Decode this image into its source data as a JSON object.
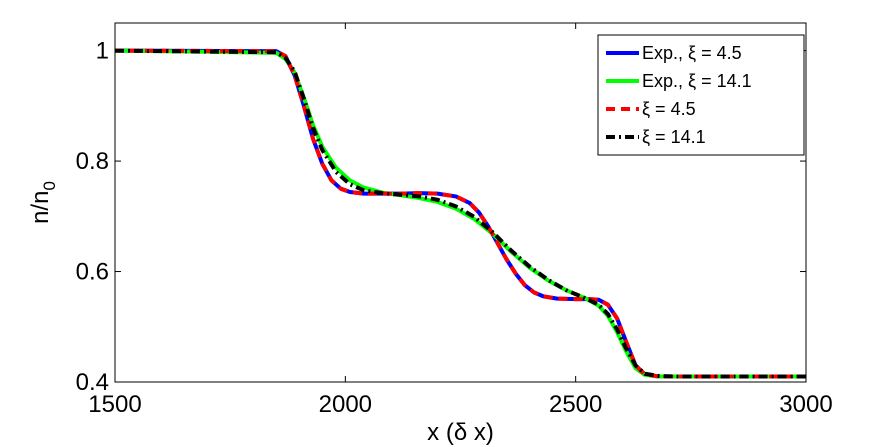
{
  "chart_data": {
    "type": "line",
    "xlabel": "x (δ x)",
    "ylabel": {
      "main": "n/n",
      "sub": "0"
    },
    "xlim": [
      1500,
      3000
    ],
    "ylim": [
      0.4,
      1.05
    ],
    "xticks": [
      1500,
      2000,
      2500,
      3000
    ],
    "yticks": [
      0.4,
      0.6,
      0.8,
      1
    ],
    "ytick_labels": [
      "0.4",
      "0.6",
      "0.8",
      "1"
    ],
    "grid": false,
    "legend_position": "top-right",
    "series": [
      {
        "name": "Exp., ξ = 4.5",
        "color": "#0000ff",
        "style": "solid",
        "x": [
          1500,
          1850,
          1870,
          1890,
          1910,
          1930,
          1950,
          1970,
          1990,
          2010,
          2040,
          2080,
          2120,
          2160,
          2200,
          2240,
          2270,
          2290,
          2310,
          2330,
          2350,
          2370,
          2390,
          2410,
          2430,
          2460,
          2500,
          2530,
          2550,
          2570,
          2590,
          2610,
          2630,
          2650,
          2680,
          2720,
          3000
        ],
        "values": [
          1.0,
          0.999,
          0.99,
          0.955,
          0.9,
          0.84,
          0.795,
          0.765,
          0.75,
          0.744,
          0.741,
          0.741,
          0.741,
          0.742,
          0.741,
          0.736,
          0.724,
          0.707,
          0.682,
          0.652,
          0.622,
          0.596,
          0.575,
          0.562,
          0.555,
          0.551,
          0.55,
          0.55,
          0.549,
          0.54,
          0.515,
          0.472,
          0.43,
          0.414,
          0.41,
          0.41,
          0.41
        ]
      },
      {
        "name": "Exp., ξ = 14.1",
        "color": "#00ff00",
        "style": "solid",
        "x": [
          1500,
          1850,
          1870,
          1890,
          1910,
          1930,
          1950,
          1980,
          2010,
          2040,
          2080,
          2120,
          2160,
          2200,
          2240,
          2280,
          2320,
          2360,
          2400,
          2440,
          2480,
          2520,
          2550,
          2570,
          2590,
          2610,
          2630,
          2650,
          2680,
          2720,
          3000
        ],
        "values": [
          1.0,
          0.996,
          0.985,
          0.96,
          0.915,
          0.865,
          0.826,
          0.788,
          0.765,
          0.752,
          0.743,
          0.738,
          0.733,
          0.726,
          0.714,
          0.695,
          0.668,
          0.636,
          0.607,
          0.584,
          0.566,
          0.552,
          0.538,
          0.52,
          0.49,
          0.455,
          0.425,
          0.413,
          0.41,
          0.41,
          0.41
        ]
      },
      {
        "name": "ξ = 4.5",
        "color": "#ff0000",
        "style": "dashed",
        "x": [
          1500,
          1850,
          1870,
          1890,
          1910,
          1930,
          1950,
          1970,
          1990,
          2010,
          2040,
          2080,
          2120,
          2160,
          2200,
          2240,
          2270,
          2290,
          2310,
          2330,
          2350,
          2370,
          2390,
          2410,
          2430,
          2460,
          2500,
          2530,
          2550,
          2570,
          2590,
          2610,
          2630,
          2650,
          2680,
          2720,
          3000
        ],
        "values": [
          1.0,
          0.999,
          0.99,
          0.955,
          0.9,
          0.84,
          0.795,
          0.765,
          0.75,
          0.744,
          0.741,
          0.741,
          0.741,
          0.742,
          0.741,
          0.736,
          0.724,
          0.707,
          0.682,
          0.652,
          0.622,
          0.596,
          0.575,
          0.562,
          0.555,
          0.551,
          0.55,
          0.55,
          0.549,
          0.54,
          0.515,
          0.472,
          0.43,
          0.414,
          0.41,
          0.41,
          0.41
        ]
      },
      {
        "name": "ξ = 14.1",
        "color": "#000000",
        "style": "dashdot",
        "x": [
          1500,
          1850,
          1870,
          1890,
          1910,
          1930,
          1950,
          1980,
          2010,
          2040,
          2080,
          2120,
          2160,
          2200,
          2240,
          2280,
          2320,
          2360,
          2400,
          2440,
          2480,
          2520,
          2550,
          2570,
          2590,
          2610,
          2630,
          2650,
          2680,
          2720,
          3000
        ],
        "values": [
          1.0,
          0.997,
          0.987,
          0.962,
          0.913,
          0.86,
          0.82,
          0.78,
          0.758,
          0.747,
          0.742,
          0.739,
          0.736,
          0.73,
          0.718,
          0.699,
          0.671,
          0.638,
          0.609,
          0.585,
          0.566,
          0.552,
          0.54,
          0.523,
          0.495,
          0.46,
          0.43,
          0.415,
          0.411,
          0.41,
          0.41
        ]
      }
    ]
  }
}
